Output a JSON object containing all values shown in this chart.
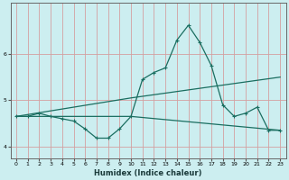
{
  "xlabel": "Humidex (Indice chaleur)",
  "bg_color": "#cceef0",
  "grid_color": "#d4a0a0",
  "line_color": "#1a6e60",
  "xlim": [
    -0.5,
    23.5
  ],
  "ylim": [
    3.75,
    7.1
  ],
  "xticks": [
    0,
    1,
    2,
    3,
    4,
    5,
    6,
    7,
    8,
    9,
    10,
    11,
    12,
    13,
    14,
    15,
    16,
    17,
    18,
    19,
    20,
    21,
    22,
    23
  ],
  "yticks": [
    4,
    5,
    6
  ],
  "line1_x": [
    0,
    1,
    2,
    3,
    4,
    5,
    6,
    7,
    8,
    9,
    10,
    11,
    12,
    13,
    14,
    15,
    16,
    17,
    18,
    19,
    20,
    21,
    22,
    23
  ],
  "line1_y": [
    4.65,
    4.65,
    4.72,
    4.65,
    4.6,
    4.55,
    4.38,
    4.18,
    4.18,
    4.38,
    4.65,
    5.45,
    5.6,
    5.7,
    6.3,
    6.62,
    6.25,
    5.75,
    4.9,
    4.65,
    4.72,
    4.85,
    4.35,
    4.35
  ],
  "line2_x": [
    0,
    10,
    23
  ],
  "line2_y": [
    4.65,
    5.05,
    5.5
  ],
  "line3_x": [
    0,
    10,
    23
  ],
  "line3_y": [
    4.65,
    4.65,
    4.35
  ]
}
